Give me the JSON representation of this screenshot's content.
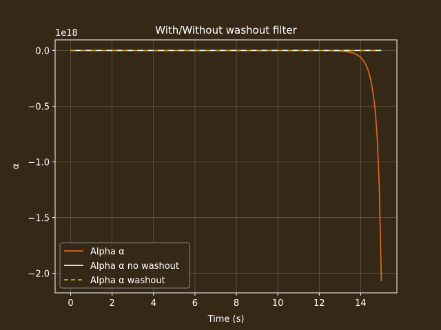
{
  "chart_data": {
    "type": "line",
    "title": "With/Without washout filter",
    "xlabel": "Time (s)",
    "ylabel": "α",
    "offset_label": "1e18",
    "xlim": [
      -0.75,
      15.75
    ],
    "ylim": [
      -2.175,
      0.095
    ],
    "x_ticks": [
      0,
      2,
      4,
      6,
      8,
      10,
      12,
      14
    ],
    "y_ticks": [
      0.0,
      -0.5,
      -1.0,
      -1.5,
      -2.0
    ],
    "y_tick_labels": [
      "0.0",
      "−0.5",
      "−1.0",
      "−1.5",
      "−2.0"
    ],
    "grid": true,
    "legend_position": "lower-left",
    "background": "#352816",
    "series": [
      {
        "name": "Alpha α",
        "color": "#d2691e",
        "style": "solid",
        "x": [
          0,
          10,
          12,
          12.5,
          13,
          13.3,
          13.6,
          13.8,
          14.0,
          14.2,
          14.35,
          14.5,
          14.6,
          14.7,
          14.8,
          14.9,
          15.0
        ],
        "y": [
          0,
          0,
          -0.0003,
          -0.001,
          -0.004,
          -0.01,
          -0.02,
          -0.035,
          -0.06,
          -0.11,
          -0.17,
          -0.27,
          -0.38,
          -0.53,
          -0.78,
          -1.22,
          -2.07
        ]
      },
      {
        "name": "Alpha α no washout",
        "color": "#e8f8ff",
        "style": "solid",
        "x": [
          0,
          15
        ],
        "y": [
          0,
          0
        ]
      },
      {
        "name": "Alpha α washout",
        "color": "#d4a017",
        "style": "dashed",
        "x": [
          0,
          15
        ],
        "y": [
          0,
          0
        ]
      }
    ]
  }
}
